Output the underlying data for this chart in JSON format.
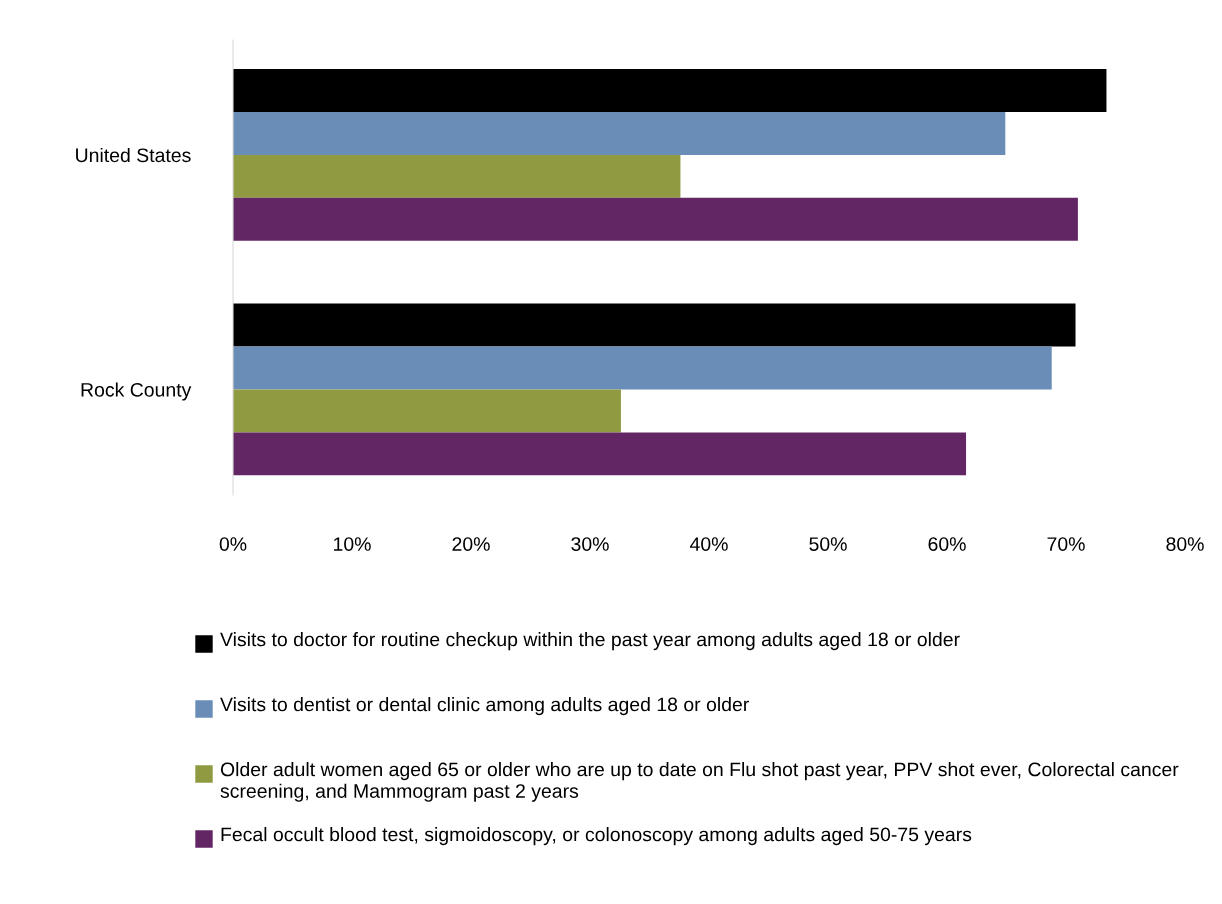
{
  "chart_data": {
    "type": "bar",
    "orientation": "horizontal",
    "categories": [
      "United States",
      "Rock County"
    ],
    "series": [
      {
        "name": "Visits to doctor for routine checkup within the past year among adults aged 18 or older",
        "color": "#000000",
        "values": [
          73.4,
          70.8
        ]
      },
      {
        "name": "Visits to dentist or dental clinic among adults aged 18 or older",
        "color": "#6a8db8",
        "values": [
          64.9,
          68.8
        ]
      },
      {
        "name": "Older adult women aged 65 or older who are up to date on Flu shot past year, PPV shot ever, Colorectal cancer screening, and Mammogram past 2 years",
        "color": "#8f9a41",
        "values": [
          37.6,
          32.6
        ]
      },
      {
        "name": "Fecal occult blood test, sigmoidoscopy, or colonoscopy among adults aged 50-75 years",
        "color": "#632665",
        "values": [
          71.0,
          61.6
        ]
      }
    ],
    "xlim": [
      0,
      80
    ],
    "xticks": [
      {
        "value": 0,
        "label": "0%"
      },
      {
        "value": 10,
        "label": "10%"
      },
      {
        "value": 20,
        "label": "20%"
      },
      {
        "value": 30,
        "label": "30%"
      },
      {
        "value": 40,
        "label": "40%"
      },
      {
        "value": 50,
        "label": "50%"
      },
      {
        "value": 60,
        "label": "60%"
      },
      {
        "value": 70,
        "label": "70%"
      },
      {
        "value": 80,
        "label": "80%"
      }
    ],
    "grid": false,
    "legend": "bottom"
  }
}
